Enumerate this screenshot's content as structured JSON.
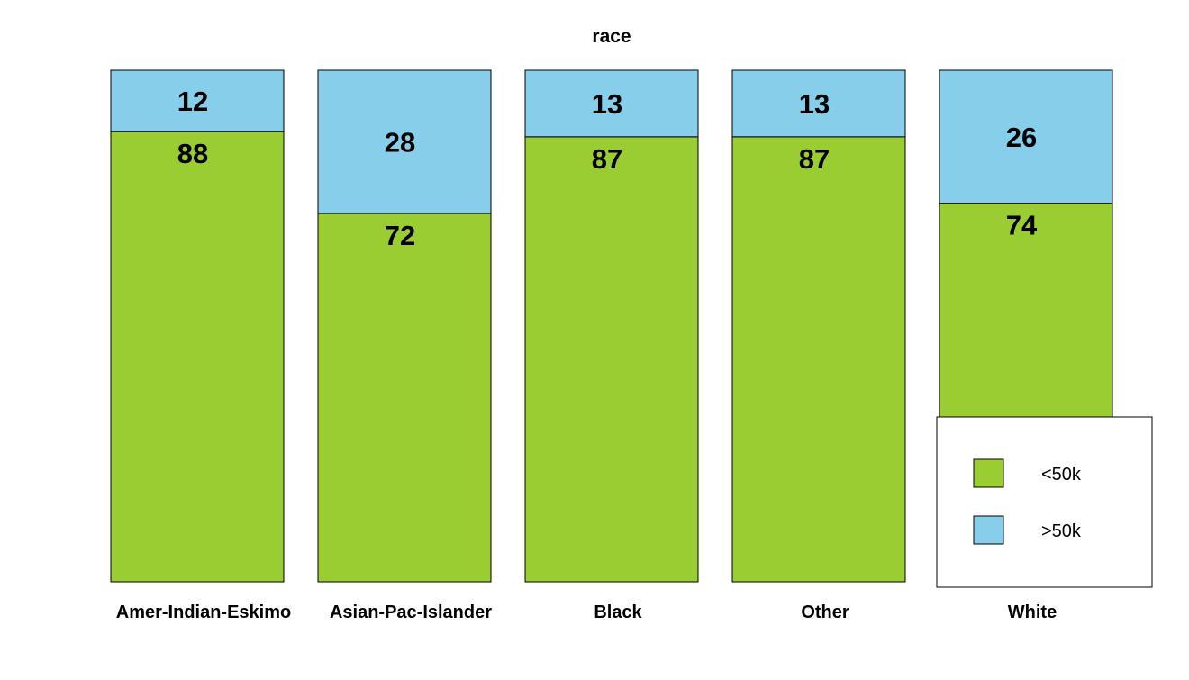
{
  "chart_data": {
    "type": "bar",
    "stacked": true,
    "title": "race",
    "xlabel": "",
    "ylabel": "",
    "ylim": [
      0,
      100
    ],
    "grid": false,
    "legend_position": "bottom-right",
    "categories": [
      "Amer-Indian-Eskimo",
      "Asian-Pac-Islander",
      "Black",
      "Other",
      "White"
    ],
    "series": [
      {
        "name": "<50k",
        "color": "#9ACD32",
        "values": [
          88,
          72,
          87,
          87,
          74
        ]
      },
      {
        "name": ">50k",
        "color": "#87CEEB",
        "values": [
          12,
          28,
          13,
          13,
          26
        ]
      }
    ]
  }
}
